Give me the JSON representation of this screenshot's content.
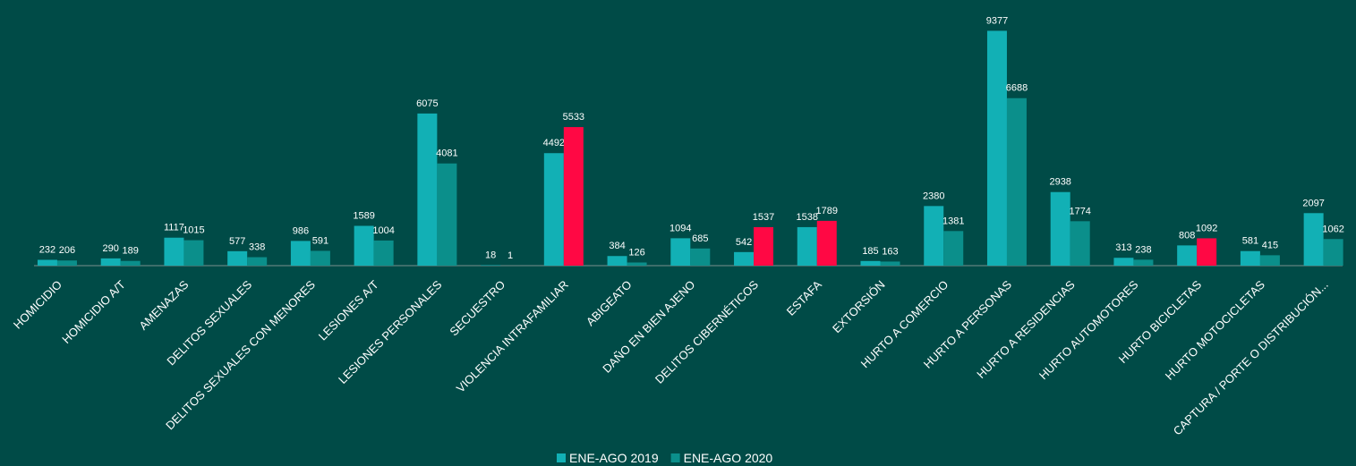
{
  "chart_data": {
    "type": "bar",
    "categories": [
      "HOMICIDIO",
      "HOMICIDIO A/T",
      "AMENAZAS",
      "DELITOS SEXUALES",
      "DELITOS SEXUALES CON MENORES",
      "LESIONES A/T",
      "LESIONES PERSONALES",
      "SECUESTRO",
      "VIOLENCIA INTRAFAMILIAR",
      "ABIGEATO",
      "DAÑO EN BIEN AJENO",
      "DELITOS CIBERNÉTICOS",
      "ESTAFA",
      "EXTORSIÓN",
      "HURTO A COMERCIO",
      "HURTO A PERSONAS",
      "HURTO A RESIDENCIAS",
      "HURTO AUTOMOTORES",
      "HURTO BICICLETAS",
      "HURTO MOTOCICLETAS",
      "CAPTURA / PORTE O DISTRIBUCIÓN..."
    ],
    "series": [
      {
        "name": "ENE-AGO 2019",
        "color": "#12b0b5",
        "values": [
          232,
          290,
          1117,
          577,
          986,
          1589,
          6075,
          18,
          4492,
          384,
          1094,
          542,
          1538,
          185,
          2380,
          9377,
          2938,
          313,
          808,
          581,
          2097
        ]
      },
      {
        "name": "ENE-AGO 2020",
        "color": "#0b8f8b",
        "colors": [
          "#0b8f8b",
          "#0b8f8b",
          "#0b8f8b",
          "#0b8f8b",
          "#0b8f8b",
          "#0b8f8b",
          "#0b8f8b",
          "#0b8f8b",
          "#ff0844",
          "#0b8f8b",
          "#0b8f8b",
          "#ff0844",
          "#ff0844",
          "#0b8f8b",
          "#0b8f8b",
          "#0b8f8b",
          "#0b8f8b",
          "#0b8f8b",
          "#ff0844",
          "#0b8f8b",
          "#0b8f8b"
        ],
        "values": [
          206,
          189,
          1015,
          338,
          591,
          1004,
          4081,
          1,
          5533,
          126,
          685,
          1537,
          1789,
          163,
          1381,
          6688,
          1774,
          238,
          1092,
          415,
          1062
        ]
      }
    ],
    "ylim": [
      0,
      10000
    ],
    "grid": false,
    "legend": "bottom"
  }
}
